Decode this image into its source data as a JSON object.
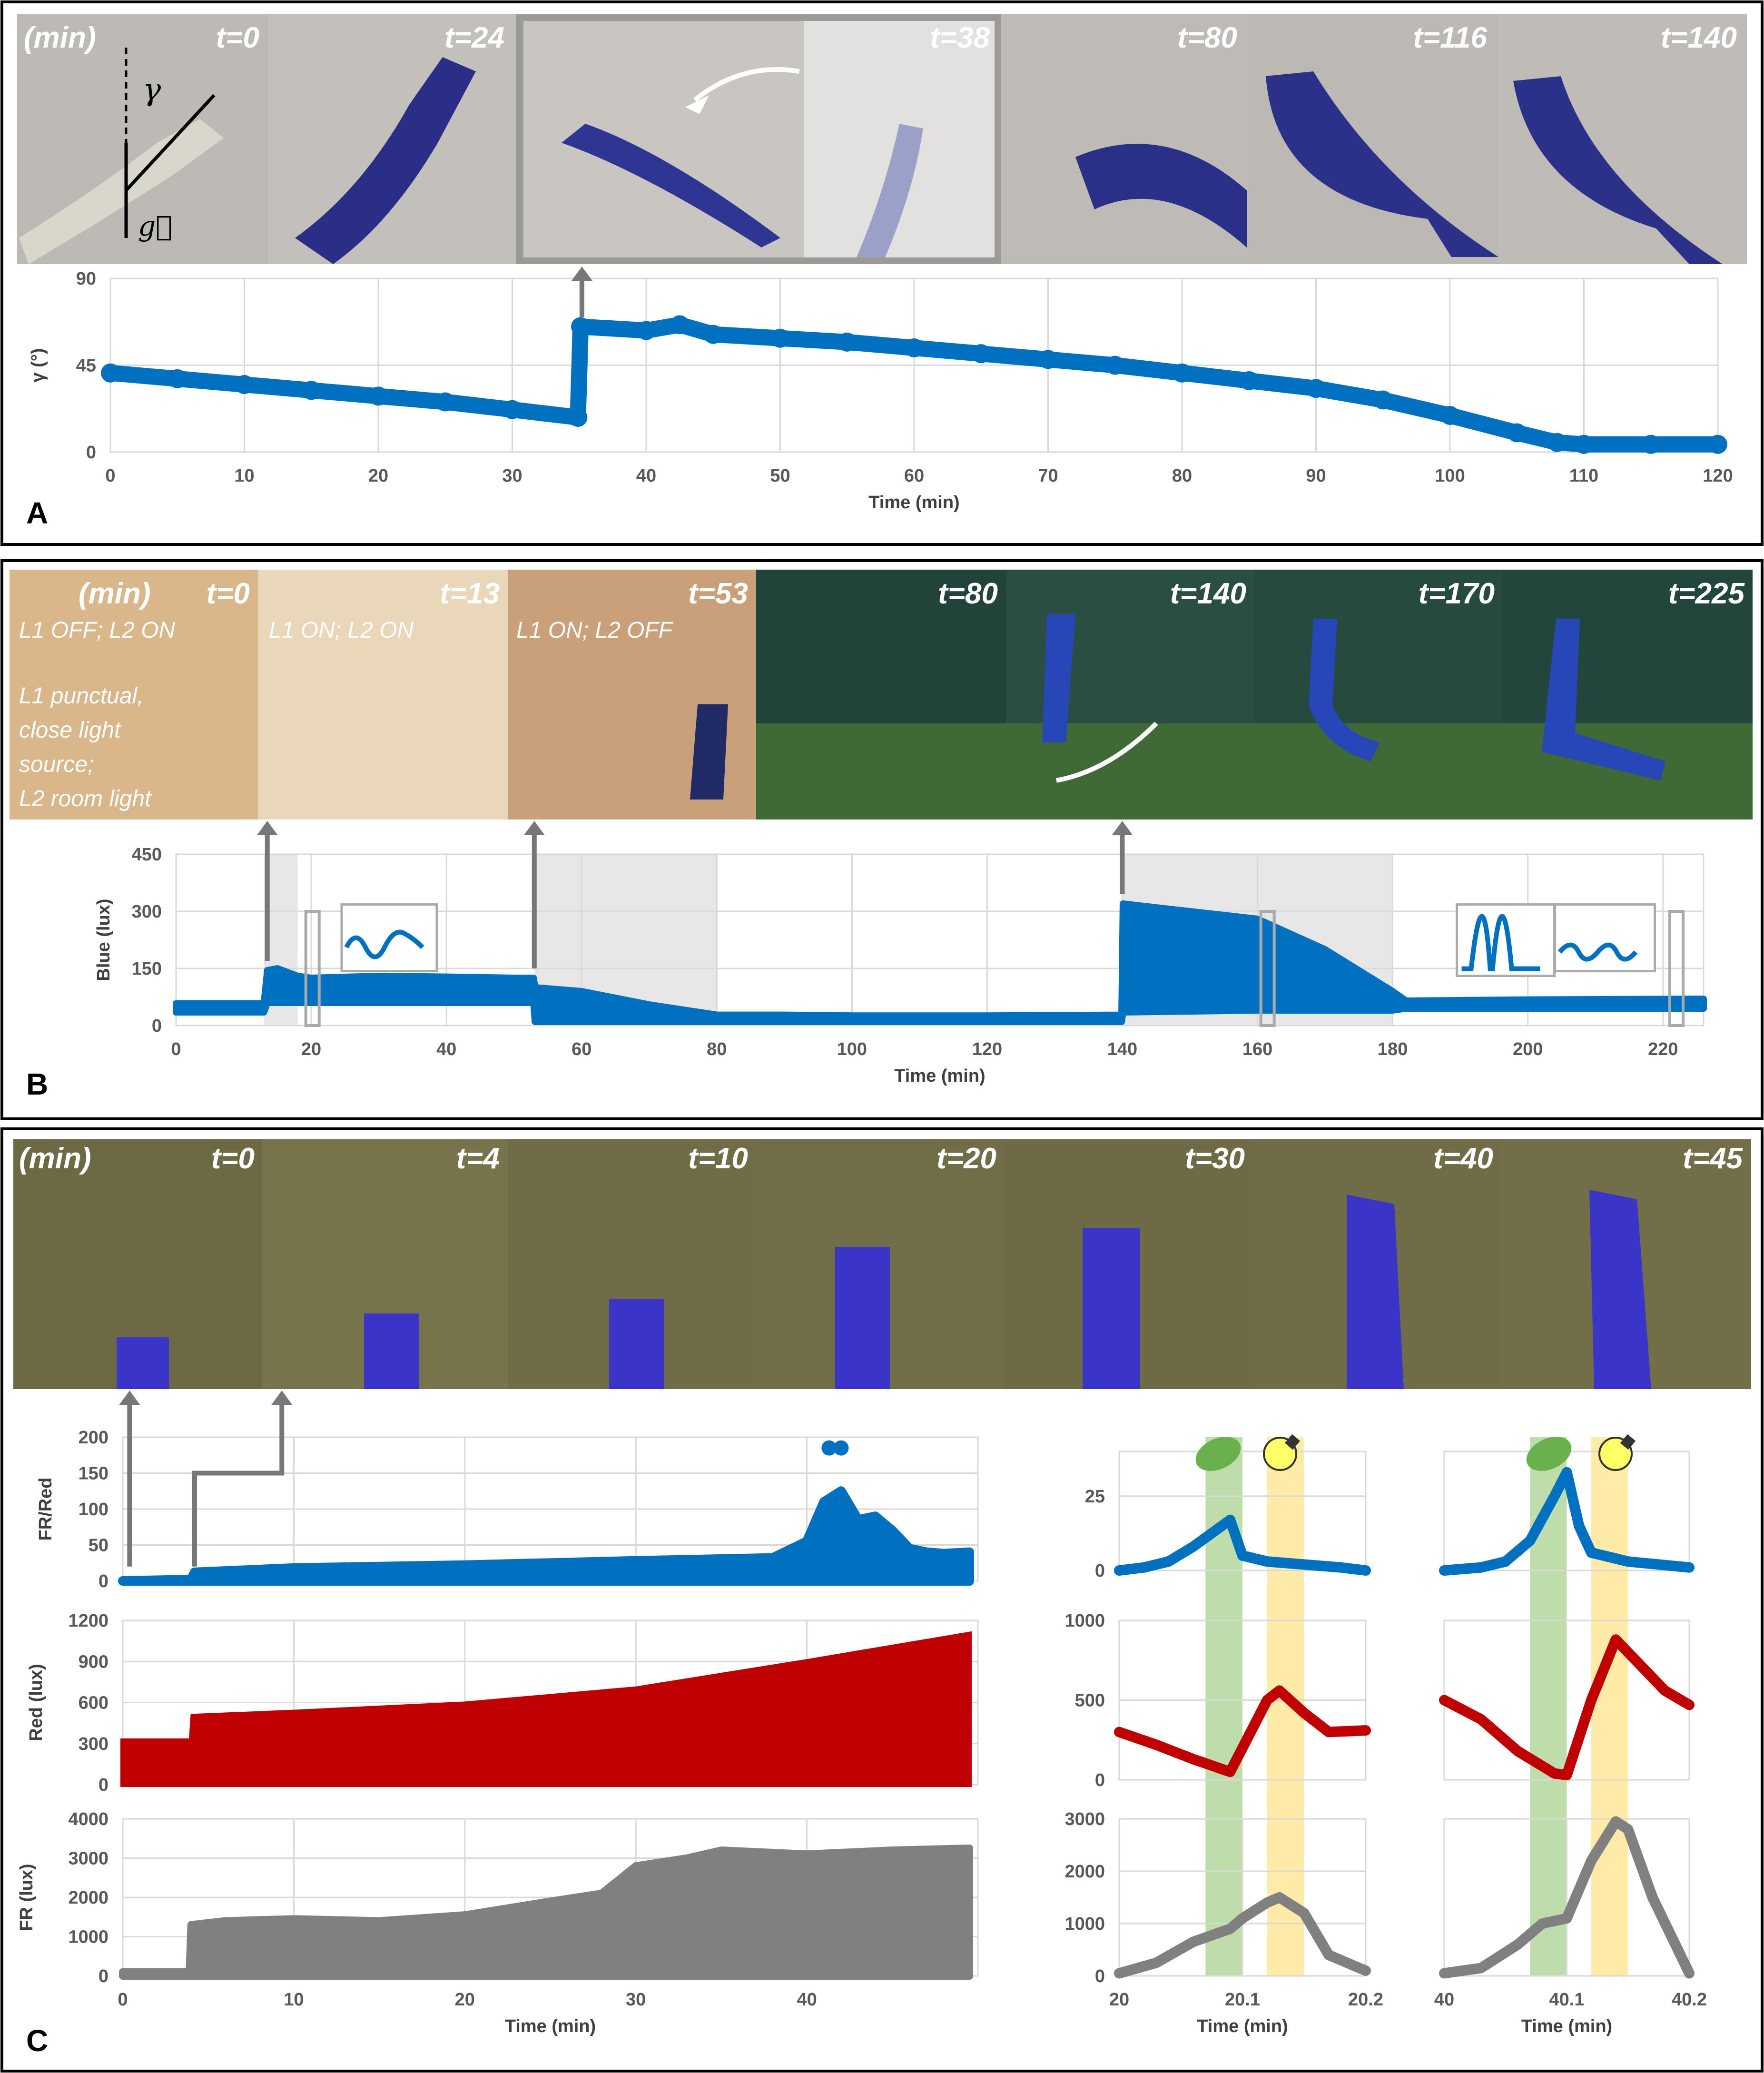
{
  "panels": {
    "A": {
      "letter": "A",
      "photo_labels": [
        "(min)",
        "t=0",
        "t=24",
        "t=38",
        "t=80",
        "t=116",
        "t=140"
      ],
      "symbol_gamma": "γ",
      "symbol_g": "g⃗"
    },
    "B": {
      "letter": "B",
      "photo_labels": [
        "(min)",
        "t=0",
        "t=13",
        "t=53",
        "t=80",
        "t=140",
        "t=170",
        "t=225"
      ],
      "notes": [
        "L1 OFF; L2 ON",
        "L1 ON; L2 ON",
        "L1 ON; L2 OFF",
        "L1 punctual,",
        "close light",
        "source;",
        "L2 room light"
      ]
    },
    "C": {
      "letter": "C",
      "photo_labels": [
        "(min)",
        "t=0",
        "t=4",
        "t=10",
        "t=20",
        "t=30",
        "t=40",
        "t=45"
      ]
    }
  },
  "colors": {
    "blue": "#0070c0",
    "red": "#c00000",
    "gray": "#808080",
    "shade_gray": "#e7e7e7",
    "shade_green": "#a9d18e",
    "shade_yellow": "#ffe699",
    "frame": "#000000"
  },
  "chart_data": [
    {
      "id": "A-gamma",
      "type": "scatter",
      "title": "",
      "xlabel": "Time (min)",
      "ylabel": "γ (°)",
      "xlim": [
        0,
        120
      ],
      "ylim": [
        0,
        90
      ],
      "xticks": [
        0,
        10,
        20,
        30,
        40,
        50,
        60,
        70,
        80,
        90,
        100,
        110,
        120
      ],
      "yticks": [
        0,
        45,
        90
      ],
      "series": [
        {
          "name": "γ",
          "color": "#0070c0",
          "x": [
            0,
            5,
            10,
            15,
            20,
            25,
            30,
            34.9,
            35.1,
            40,
            42.5,
            45,
            50,
            55,
            60,
            65,
            70,
            75,
            80,
            85,
            90,
            95,
            100,
            105,
            108,
            110,
            115,
            120
          ],
          "y": [
            41,
            38,
            35,
            32,
            29,
            26,
            22,
            18,
            65,
            63,
            66,
            61,
            59,
            57,
            54,
            51,
            48,
            45,
            41,
            37,
            33,
            27,
            19,
            10,
            5,
            4,
            4,
            4
          ]
        }
      ]
    },
    {
      "id": "B-blue",
      "type": "area",
      "title": "",
      "xlabel": "Time (min)",
      "ylabel": "Blue (lux)",
      "xlim": [
        0,
        226
      ],
      "ylim": [
        0,
        450
      ],
      "xticks": [
        0,
        20,
        40,
        60,
        80,
        100,
        120,
        140,
        160,
        180,
        200,
        220
      ],
      "yticks": [
        0,
        150,
        300,
        450
      ],
      "shaded_intervals": [
        [
          13,
          18
        ],
        [
          53,
          80
        ],
        [
          140,
          180
        ]
      ],
      "series": [
        {
          "name": "upper",
          "color": "#0070c0",
          "x": [
            0,
            13,
            13.5,
            15,
            18,
            20,
            30,
            40,
            50,
            52.9,
            53.1,
            60,
            70,
            80,
            90,
            100,
            120,
            139.9,
            140.1,
            145,
            150,
            160,
            170,
            180,
            182,
            200,
            226
          ],
          "y": [
            58,
            58,
            145,
            150,
            130,
            125,
            130,
            128,
            125,
            125,
            100,
            90,
            55,
            28,
            28,
            26,
            26,
            28,
            320,
            310,
            300,
            280,
            200,
            90,
            65,
            68,
            70
          ]
        },
        {
          "name": "lower",
          "color": "#0070c0",
          "x": [
            0,
            13,
            13.5,
            20,
            40,
            52.9,
            53.1,
            60,
            80,
            139.9,
            140.1,
            160,
            180,
            182,
            226
          ],
          "y": [
            35,
            35,
            60,
            60,
            60,
            60,
            10,
            10,
            10,
            10,
            35,
            40,
            40,
            45,
            45
          ]
        }
      ]
    },
    {
      "id": "C-fr-red",
      "type": "scatter",
      "title": "",
      "xlabel": "",
      "ylabel": "FR/Red",
      "xlim": [
        0,
        50
      ],
      "ylim": [
        0,
        200
      ],
      "xticks": [
        0,
        10,
        20,
        30,
        40
      ],
      "yticks": [
        0,
        50,
        100,
        150,
        200
      ],
      "series": [
        {
          "name": "FR/Red",
          "color": "#0070c0",
          "x": [
            0,
            4,
            4.2,
            10,
            20,
            30,
            38,
            40,
            41,
            42,
            43,
            44,
            45,
            46,
            47,
            48,
            49.5
          ],
          "y": [
            0,
            2,
            12,
            18,
            22,
            28,
            32,
            55,
            110,
            125,
            85,
            90,
            70,
            45,
            40,
            38,
            40
          ],
          "outliers_x": [
            41.3,
            42.0
          ],
          "outliers_y": [
            185,
            185
          ]
        }
      ]
    },
    {
      "id": "C-red",
      "type": "area",
      "title": "",
      "xlabel": "",
      "ylabel": "Red (lux)",
      "xlim": [
        0,
        50
      ],
      "ylim": [
        0,
        1200
      ],
      "xticks": [
        0,
        10,
        20,
        30,
        40
      ],
      "yticks": [
        0,
        300,
        600,
        900,
        1200
      ],
      "series": [
        {
          "name": "Red",
          "color": "#c00000",
          "x": [
            0,
            4,
            4.1,
            10,
            20,
            30,
            40,
            49.5
          ],
          "y": [
            320,
            320,
            500,
            530,
            590,
            700,
            900,
            1100
          ]
        }
      ]
    },
    {
      "id": "C-fr",
      "type": "area",
      "title": "",
      "xlabel": "Time (min)",
      "ylabel": "FR (lux)",
      "xlim": [
        0,
        50
      ],
      "ylim": [
        0,
        4000
      ],
      "xticks": [
        0,
        10,
        20,
        30,
        40
      ],
      "yticks": [
        0,
        1000,
        2000,
        3000,
        4000
      ],
      "series": [
        {
          "name": "FR",
          "color": "#808080",
          "x": [
            0,
            3.9,
            4.0,
            6,
            10,
            15,
            20,
            25,
            28,
            30,
            33,
            35,
            40,
            45,
            49.5
          ],
          "y": [
            100,
            100,
            1300,
            1400,
            1450,
            1400,
            1550,
            1900,
            2100,
            2800,
            3000,
            3200,
            3100,
            3200,
            3250
          ]
        }
      ]
    },
    {
      "id": "C-zoom1-fr-red",
      "type": "line",
      "xlim": [
        20,
        20.2
      ],
      "ylim": [
        0,
        40
      ],
      "yticks": [
        0,
        25
      ],
      "shade_green": [
        20.07,
        20.1
      ],
      "shade_yellow": [
        20.12,
        20.15
      ],
      "series": [
        {
          "name": "FR/Red",
          "color": "#0070c0",
          "x": [
            20,
            20.02,
            20.04,
            20.06,
            20.08,
            20.09,
            20.1,
            20.12,
            20.15,
            20.18,
            20.2
          ],
          "y": [
            0,
            1,
            3,
            8,
            14,
            17,
            5,
            3,
            2,
            1,
            0
          ]
        }
      ]
    },
    {
      "id": "C-zoom1-red",
      "type": "line",
      "xlim": [
        20,
        20.2
      ],
      "ylim": [
        0,
        1000
      ],
      "yticks": [
        0,
        500,
        1000
      ],
      "series": [
        {
          "name": "Red",
          "color": "#c00000",
          "x": [
            20,
            20.03,
            20.06,
            20.09,
            20.1,
            20.12,
            20.13,
            20.15,
            20.17,
            20.2
          ],
          "y": [
            300,
            220,
            130,
            50,
            200,
            500,
            560,
            420,
            300,
            310
          ]
        }
      ]
    },
    {
      "id": "C-zoom1-fr",
      "type": "line",
      "xlim": [
        20,
        20.2
      ],
      "ylim": [
        0,
        3000
      ],
      "yticks": [
        0,
        1000,
        2000,
        3000
      ],
      "xticks": [
        20,
        20.1,
        20.2
      ],
      "xlabel": "Time (min)",
      "series": [
        {
          "name": "FR",
          "color": "#808080",
          "x": [
            20,
            20.03,
            20.06,
            20.09,
            20.1,
            20.12,
            20.13,
            20.15,
            20.17,
            20.2
          ],
          "y": [
            50,
            250,
            650,
            900,
            1100,
            1400,
            1500,
            1200,
            400,
            100
          ]
        }
      ]
    },
    {
      "id": "C-zoom2-fr-red",
      "type": "line",
      "xlim": [
        40,
        40.2
      ],
      "ylim": [
        0,
        40
      ],
      "yticks": [],
      "shade_green": [
        40.07,
        40.1
      ],
      "shade_yellow": [
        40.12,
        40.15
      ],
      "series": [
        {
          "name": "FR/Red",
          "color": "#0070c0",
          "x": [
            40,
            40.03,
            40.05,
            40.07,
            40.09,
            40.1,
            40.11,
            40.12,
            40.15,
            40.2
          ],
          "y": [
            0,
            1,
            3,
            10,
            25,
            33,
            15,
            6,
            3,
            1
          ]
        }
      ]
    },
    {
      "id": "C-zoom2-red",
      "type": "line",
      "xlim": [
        40,
        40.2
      ],
      "ylim": [
        0,
        1000
      ],
      "yticks": [],
      "series": [
        {
          "name": "Red",
          "color": "#c00000",
          "x": [
            40,
            40.03,
            40.06,
            40.09,
            40.1,
            40.12,
            40.14,
            40.16,
            40.18,
            40.2
          ],
          "y": [
            500,
            380,
            180,
            40,
            30,
            500,
            880,
            720,
            560,
            470
          ]
        }
      ]
    },
    {
      "id": "C-zoom2-fr",
      "type": "line",
      "xlim": [
        40,
        40.2
      ],
      "ylim": [
        0,
        3000
      ],
      "yticks": [],
      "xticks": [
        40,
        40.1,
        40.2
      ],
      "xlabel": "Time (min)",
      "series": [
        {
          "name": "FR",
          "color": "#808080",
          "x": [
            40,
            40.03,
            40.06,
            40.08,
            40.1,
            40.12,
            40.14,
            40.15,
            40.17,
            40.2
          ],
          "y": [
            50,
            150,
            600,
            1000,
            1100,
            2200,
            2950,
            2800,
            1500,
            50
          ]
        }
      ]
    }
  ]
}
